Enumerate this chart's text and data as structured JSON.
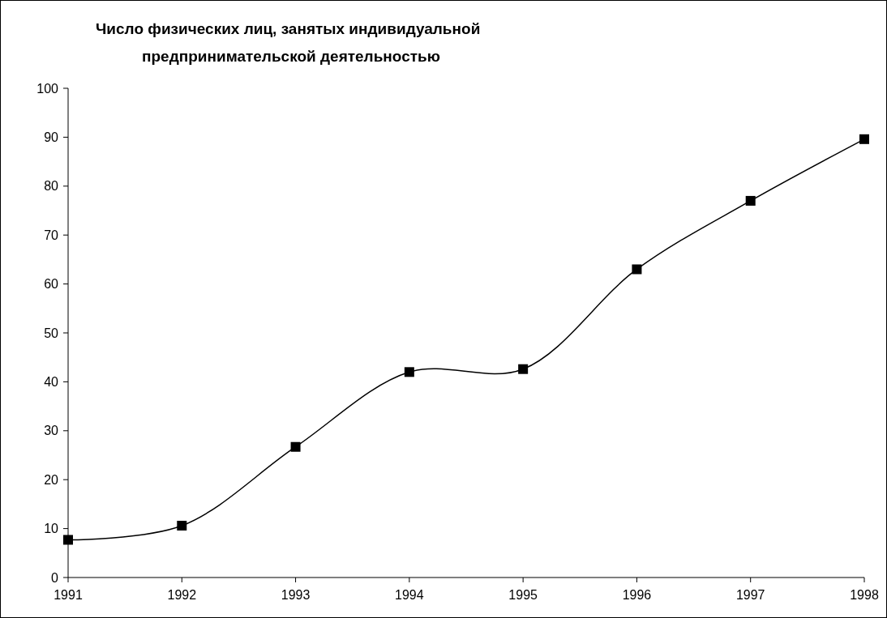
{
  "chart_data": {
    "type": "line",
    "title": "Число физических лиц, занятых индивидуальной\nпредпринимательской деятельностью",
    "x": [
      1991,
      1992,
      1993,
      1994,
      1995,
      1996,
      1997,
      1998
    ],
    "series": [
      {
        "color": "#000000",
        "values": [
          7.7,
          10.6,
          26.7,
          42,
          42.6,
          63,
          77,
          89.6
        ]
      }
    ],
    "xlim": [
      1991,
      1998
    ],
    "xticks": [
      1991,
      1992,
      1993,
      1994,
      1995,
      1996,
      1997,
      1998
    ],
    "ylim": [
      0,
      100
    ],
    "yticks": [
      0,
      10,
      20,
      30,
      40,
      50,
      60,
      70,
      80,
      90,
      100
    ],
    "grid": false,
    "marker": "square",
    "line_style": "solid"
  }
}
